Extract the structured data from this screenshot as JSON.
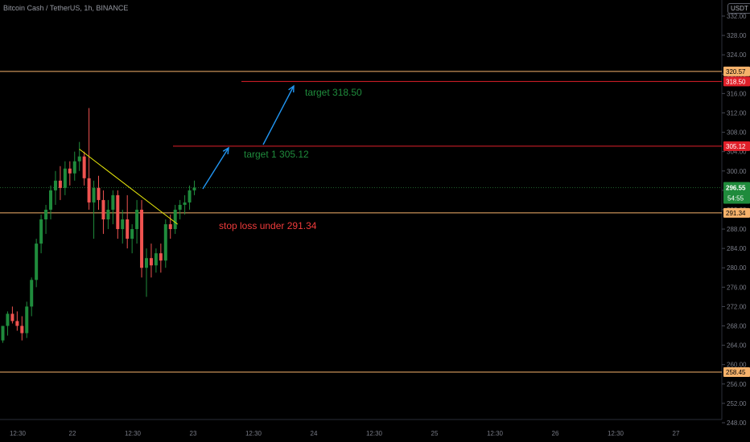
{
  "header": {
    "title": "Bitcoin Cash / TetherUS, 1h, BINANCE",
    "unit_badge": "USDT"
  },
  "price_axis": {
    "ticks": [
      "332.00",
      "328.00",
      "324.00",
      "320.00",
      "316.00",
      "312.00",
      "308.00",
      "304.00",
      "300.00",
      "296.00",
      "292.00",
      "288.00",
      "284.00",
      "280.00",
      "276.00",
      "272.00",
      "268.00",
      "264.00",
      "260.00",
      "256.00",
      "252.00",
      "248.00"
    ],
    "tick_values": [
      332,
      328,
      324,
      320,
      316,
      312,
      308,
      304,
      300,
      296,
      292,
      288,
      284,
      280,
      276,
      272,
      268,
      264,
      260,
      256,
      252,
      248
    ]
  },
  "time_axis": {
    "labels": [
      "12:30",
      "22",
      "12:30",
      "23",
      "12:30",
      "24",
      "12:30",
      "25",
      "12:30",
      "26",
      "12:30",
      "27"
    ]
  },
  "levels": [
    {
      "price": 320.57,
      "label": "320.57",
      "line_color": "#f6b26b",
      "badge_bg": "#f6b26b",
      "badge_fg": "#000000",
      "full_width": true
    },
    {
      "price": 318.5,
      "label": "318.50",
      "line_color": "#e0202a",
      "badge_bg": "#e0202a",
      "badge_fg": "#ffffff",
      "full_width": false
    },
    {
      "price": 305.12,
      "label": "305.12",
      "line_color": "#e0202a",
      "badge_bg": "#e0202a",
      "badge_fg": "#ffffff",
      "full_width": false
    },
    {
      "price": 291.34,
      "label": "291.34",
      "line_color": "#f6b26b",
      "badge_bg": "#f6b26b",
      "badge_fg": "#000000",
      "full_width": true
    },
    {
      "price": 258.45,
      "label": "258.45",
      "line_color": "#f6b26b",
      "badge_bg": "#f6b26b",
      "badge_fg": "#000000",
      "full_width": true
    }
  ],
  "current_price": {
    "value": 296.55,
    "label": "296.55",
    "countdown": "54:55",
    "color": "#1f8b3c"
  },
  "annotations": {
    "target2": "target 318.50",
    "target1": "target 1 305.12",
    "stop_loss": "stop loss  under 291.34"
  },
  "colors": {
    "up": "#26a69a",
    "up_body": "#1f8b3c",
    "down": "#ef5350",
    "trendline": "#e8e80a",
    "arrow": "#2196f3",
    "target_text": "#1f8b3c",
    "stop_text": "#ef3b3b"
  },
  "chart_data": {
    "type": "candlestick",
    "symbol": "Bitcoin Cash / TetherUS",
    "interval": "1h",
    "exchange": "BINANCE",
    "ylim": [
      247,
      334
    ],
    "candles": [
      {
        "o": 265.0,
        "h": 268.0,
        "l": 264.5,
        "c": 268.0
      },
      {
        "o": 268.0,
        "h": 271.0,
        "l": 266.0,
        "c": 270.5
      },
      {
        "o": 270.5,
        "h": 272.0,
        "l": 268.5,
        "c": 269.0
      },
      {
        "o": 269.0,
        "h": 271.0,
        "l": 267.0,
        "c": 268.0
      },
      {
        "o": 268.0,
        "h": 270.0,
        "l": 265.0,
        "c": 266.5
      },
      {
        "o": 266.5,
        "h": 273.0,
        "l": 265.5,
        "c": 272.0
      },
      {
        "o": 272.0,
        "h": 278.0,
        "l": 270.0,
        "c": 277.5
      },
      {
        "o": 277.5,
        "h": 286.0,
        "l": 276.0,
        "c": 285.0
      },
      {
        "o": 285.0,
        "h": 291.0,
        "l": 283.0,
        "c": 290.0
      },
      {
        "o": 290.0,
        "h": 293.0,
        "l": 287.0,
        "c": 292.0
      },
      {
        "o": 292.0,
        "h": 297.0,
        "l": 290.0,
        "c": 296.0
      },
      {
        "o": 296.0,
        "h": 300.0,
        "l": 293.0,
        "c": 298.0
      },
      {
        "o": 298.0,
        "h": 301.0,
        "l": 294.0,
        "c": 296.5
      },
      {
        "o": 296.5,
        "h": 302.0,
        "l": 295.0,
        "c": 300.5
      },
      {
        "o": 300.5,
        "h": 302.0,
        "l": 297.0,
        "c": 299.5
      },
      {
        "o": 299.5,
        "h": 304.0,
        "l": 298.0,
        "c": 302.0
      },
      {
        "o": 302.0,
        "h": 306.0,
        "l": 300.0,
        "c": 303.0
      },
      {
        "o": 303.0,
        "h": 304.0,
        "l": 297.0,
        "c": 298.5
      },
      {
        "o": 298.5,
        "h": 313.0,
        "l": 292.0,
        "c": 293.5
      },
      {
        "o": 293.5,
        "h": 298.0,
        "l": 286.0,
        "c": 296.5
      },
      {
        "o": 296.5,
        "h": 299.0,
        "l": 292.0,
        "c": 294.0
      },
      {
        "o": 294.0,
        "h": 296.0,
        "l": 287.0,
        "c": 290.0
      },
      {
        "o": 290.0,
        "h": 294.0,
        "l": 288.0,
        "c": 292.0
      },
      {
        "o": 292.0,
        "h": 296.0,
        "l": 289.0,
        "c": 295.0
      },
      {
        "o": 295.0,
        "h": 296.0,
        "l": 286.0,
        "c": 288.0
      },
      {
        "o": 288.0,
        "h": 292.0,
        "l": 285.0,
        "c": 290.0
      },
      {
        "o": 290.0,
        "h": 295.0,
        "l": 284.0,
        "c": 286.0
      },
      {
        "o": 286.0,
        "h": 289.0,
        "l": 283.0,
        "c": 288.0
      },
      {
        "o": 288.0,
        "h": 294.0,
        "l": 285.0,
        "c": 292.0
      },
      {
        "o": 292.0,
        "h": 294.0,
        "l": 278.0,
        "c": 280.0
      },
      {
        "o": 280.0,
        "h": 284.0,
        "l": 274.0,
        "c": 282.0
      },
      {
        "o": 282.0,
        "h": 285.0,
        "l": 278.0,
        "c": 280.5
      },
      {
        "o": 280.5,
        "h": 284.0,
        "l": 279.0,
        "c": 283.0
      },
      {
        "o": 283.0,
        "h": 285.0,
        "l": 279.0,
        "c": 281.5
      },
      {
        "o": 281.5,
        "h": 290.0,
        "l": 280.0,
        "c": 289.0
      },
      {
        "o": 289.0,
        "h": 291.0,
        "l": 286.0,
        "c": 288.0
      },
      {
        "o": 288.0,
        "h": 293.0,
        "l": 287.0,
        "c": 292.0
      },
      {
        "o": 292.0,
        "h": 294.0,
        "l": 290.0,
        "c": 293.0
      },
      {
        "o": 293.0,
        "h": 295.0,
        "l": 291.0,
        "c": 293.5
      },
      {
        "o": 293.5,
        "h": 297.0,
        "l": 292.0,
        "c": 296.0
      },
      {
        "o": 296.0,
        "h": 298.0,
        "l": 295.0,
        "c": 296.55
      }
    ],
    "trendline": {
      "from_candle": 16,
      "from_price": 304.5,
      "to_candle": 36,
      "to_price": 289.0
    }
  }
}
